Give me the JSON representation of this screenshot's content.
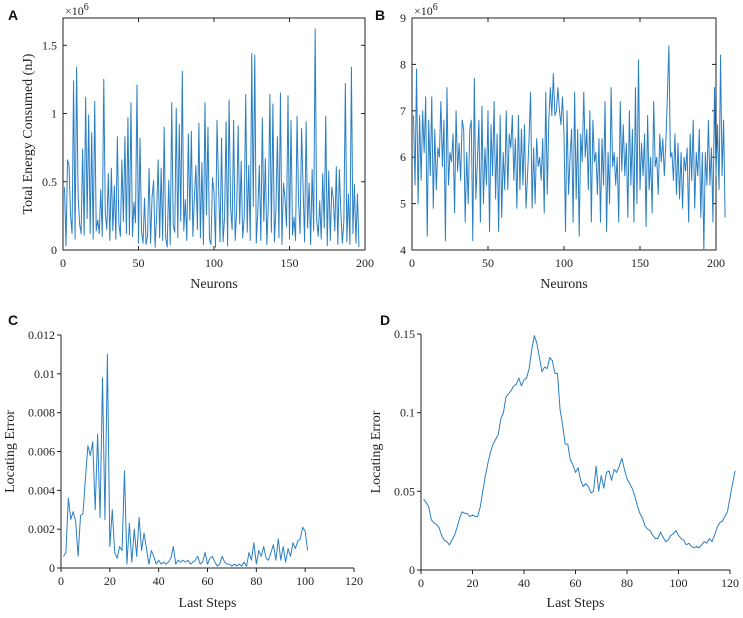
{
  "figure": {
    "accent_color": "#2a7fc4",
    "axis_color": "#222222"
  },
  "chart_data": [
    {
      "panel": "A",
      "type": "line",
      "title": "",
      "xlabel": "Neurons",
      "ylabel": "Total Energy Consumed (nJ)",
      "exponent_label": "×10",
      "exponent_power": "6",
      "xlim": [
        0,
        200
      ],
      "ylim": [
        0,
        1.7
      ],
      "xticks": [
        0,
        50,
        100,
        150,
        200
      ],
      "yticks": [
        0,
        0.5,
        1,
        1.5
      ],
      "ytick_labels": [
        "0",
        "0.5",
        "1",
        "1.5"
      ],
      "x_start": 1,
      "x_step": 1,
      "values": [
        0.46,
        0.03,
        0.66,
        0.62,
        0.25,
        0.12,
        1.24,
        0.08,
        1.34,
        0.4,
        0.19,
        0.12,
        0.74,
        0.11,
        1.12,
        0.23,
        0.99,
        0.12,
        0.86,
        0.08,
        1.09,
        0.14,
        0.22,
        0.12,
        0.44,
        0.1,
        1.25,
        0.27,
        0.15,
        0.56,
        0.07,
        0.6,
        0.14,
        0.47,
        0.08,
        0.83,
        0.19,
        0.1,
        0.66,
        0.21,
        0.83,
        0.12,
        0.97,
        0.11,
        1.08,
        0.1,
        0.35,
        0.2,
        1.21,
        0.05,
        0.82,
        0.14,
        0.05,
        0.38,
        0.04,
        0.1,
        0.6,
        0.05,
        0.39,
        0.51,
        0.02,
        0.25,
        0.66,
        0.09,
        0.6,
        0.07,
        0.9,
        0.09,
        0.02,
        0.51,
        0.04,
        1.08,
        0.18,
        0.13,
        1.04,
        0.09,
        0.92,
        0.21,
        1.31,
        0.14,
        0.37,
        0.07,
        0.85,
        0.22,
        0.87,
        0.1,
        0.38,
        0.62,
        0.15,
        0.93,
        0.09,
        0.64,
        0.04,
        1.08,
        0.26,
        0.9,
        0.08,
        0.04,
        0.53,
        0.42,
        0.02,
        0.95,
        0.48,
        0.06,
        0.82,
        0.06,
        0.24,
        0.94,
        0.03,
        1.1,
        0.31,
        0.15,
        0.95,
        0.07,
        0.28,
        0.91,
        0.19,
        0.65,
        0.09,
        0.24,
        1.14,
        0.13,
        0.62,
        0.07,
        1.44,
        0.32,
        1.43,
        0.05,
        0.28,
        0.62,
        0.07,
        0.97,
        0.21,
        0.67,
        0.04,
        0.34,
        1.14,
        0.13,
        1.07,
        0.06,
        0.3,
        0.83,
        0.09,
        1.15,
        0.04,
        0.49,
        0.38,
        0.17,
        1.13,
        0.08,
        0.95,
        0.11,
        0.24,
        0.07,
        0.98,
        0.36,
        0.12,
        0.89,
        0.45,
        0.06,
        0.94,
        0.16,
        0.49,
        0.04,
        0.59,
        0.14,
        1.62,
        0.22,
        0.1,
        0.36,
        0.08,
        0.56,
        0.16,
        0.98,
        0.03,
        0.58,
        0.07,
        0.46,
        0.38,
        0.14,
        0.61,
        0.04,
        0.59,
        0.28,
        0.05,
        0.21,
        1.22,
        0.06,
        0.41,
        0.04,
        1.34,
        0.12,
        0.48,
        0.05,
        0.41,
        0.02
      ]
    },
    {
      "panel": "B",
      "type": "line",
      "title": "",
      "xlabel": "Neurons",
      "ylabel": "",
      "exponent_label": "×10",
      "exponent_power": "6",
      "xlim": [
        0,
        200
      ],
      "ylim": [
        4,
        9
      ],
      "xticks": [
        0,
        50,
        100,
        150,
        200
      ],
      "yticks": [
        4,
        5,
        6,
        7,
        8,
        9
      ],
      "ytick_labels": [
        "4",
        "5",
        "6",
        "7",
        "8",
        "9"
      ],
      "x_start": 1,
      "x_step": 1,
      "values": [
        6.9,
        5.4,
        7.9,
        5.0,
        6.9,
        5.5,
        7.0,
        6.1,
        7.3,
        4.3,
        6.8,
        5.6,
        7.3,
        4.9,
        6.6,
        5.3,
        6.2,
        6.0,
        7.2,
        5.8,
        6.8,
        4.2,
        7.5,
        5.4,
        6.1,
        5.9,
        6.5,
        4.8,
        7.0,
        5.7,
        6.3,
        5.5,
        6.8,
        6.6,
        4.6,
        6.1,
        5.0,
        6.6,
        6.8,
        4.2,
        7.7,
        5.1,
        5.9,
        6.8,
        4.6,
        7.1,
        5.0,
        6.2,
        5.4,
        7.0,
        4.4,
        6.7,
        5.6,
        7.2,
        5.1,
        6.5,
        4.4,
        6.9,
        4.7,
        6.1,
        5.3,
        7.0,
        5.3,
        6.5,
        6.2,
        6.9,
        5.5,
        6.4,
        4.9,
        6.9,
        5.3,
        6.6,
        5.4,
        6.7,
        4.9,
        5.6,
        6.4,
        7.4,
        4.9,
        6.2,
        5.0,
        6.4,
        5.8,
        6.0,
        5.5,
        6.4,
        4.8,
        7.4,
        5.2,
        6.8,
        7.5,
        6.9,
        7.8,
        6.9,
        7.0,
        7.5,
        7.0,
        6.7,
        7.3,
        6.5,
        4.4,
        7.0,
        5.2,
        6.0,
        6.6,
        4.6,
        7.4,
        5.1,
        6.6,
        4.3,
        6.5,
        5.9,
        7.4,
        6.0,
        6.6,
        5.3,
        7.0,
        4.6,
        6.8,
        5.9,
        6.1,
        5.2,
        6.4,
        4.6,
        6.4,
        5.4,
        7.2,
        4.4,
        6.1,
        5.0,
        7.5,
        5.8,
        6.1,
        5.4,
        6.0,
        4.6,
        7.2,
        5.7,
        6.7,
        5.6,
        6.3,
        4.7,
        7.0,
        5.4,
        6.6,
        4.6,
        7.5,
        5.0,
        8.1,
        5.3,
        6.3,
        5.6,
        6.5,
        4.5,
        6.9,
        5.3,
        6.0,
        4.8,
        7.2,
        5.8,
        6.0,
        5.2,
        6.5,
        5.9,
        6.4,
        5.6,
        6.3,
        7.3,
        8.4,
        6.0,
        6.1,
        5.5,
        6.5,
        5.2,
        6.3,
        5.1,
        6.1,
        4.9,
        6.0,
        5.7,
        6.2,
        4.6,
        6.5,
        5.5,
        6.8,
        4.9,
        6.1,
        5.6,
        6.6,
        4.7,
        6.1,
        4.0,
        6.1,
        5.4,
        6.8,
        5.4,
        6.2,
        4.6,
        7.5,
        5.6,
        6.7,
        5.3,
        8.2,
        5.6,
        6.8,
        4.7
      ]
    },
    {
      "panel": "C",
      "type": "line",
      "title": "",
      "xlabel": "Last Steps",
      "ylabel": "Locating Error",
      "xlim": [
        0,
        120
      ],
      "ylim": [
        0,
        0.012
      ],
      "xticks": [
        0,
        20,
        40,
        60,
        80,
        100,
        120
      ],
      "yticks": [
        0,
        0.002,
        0.004,
        0.006,
        0.008,
        0.01,
        0.012
      ],
      "ytick_labels": [
        "0",
        "0.002",
        "0.004",
        "0.006",
        "0.008",
        "0.01",
        "0.012"
      ],
      "x_start": 1,
      "x_step": 1,
      "values": [
        0.0006,
        0.0008,
        0.0036,
        0.0025,
        0.0029,
        0.0024,
        0.0006,
        0.0027,
        0.0028,
        0.0046,
        0.0063,
        0.0058,
        0.0065,
        0.003,
        0.0069,
        0.0026,
        0.0098,
        0.0025,
        0.011,
        0.0011,
        0.003,
        0.0008,
        0.0005,
        0.0011,
        0.0009,
        0.005,
        0.0002,
        0.0023,
        0.0003,
        0.002,
        0.0006,
        0.0026,
        0.0009,
        0.0018,
        0.001,
        0.0002,
        0.0009,
        0.0006,
        0.0002,
        0.0004,
        0.0002,
        0.0003,
        0.0002,
        0.0003,
        0.0005,
        0.0011,
        0.0002,
        0.0004,
        0.0003,
        0.0004,
        0.0003,
        0.0004,
        0.0002,
        0.0003,
        0.0004,
        0.0006,
        0.0002,
        0.0003,
        0.0008,
        0.0002,
        0.0005,
        0.0006,
        0.0003,
        0.0001,
        0.0002,
        0.0006,
        0.0003,
        0.0002,
        0.0002,
        0.0001,
        0.0002,
        0.0001,
        0.0002,
        0.0001,
        0.0003,
        0.0001,
        0.0008,
        0.0004,
        0.0013,
        0.0002,
        0.0009,
        0.0006,
        0.0011,
        0.0005,
        0.0004,
        0.0008,
        0.0012,
        0.0004,
        0.0015,
        0.0004,
        0.0011,
        0.0003,
        0.001,
        0.0006,
        0.0013,
        0.001,
        0.0014,
        0.0015,
        0.0021,
        0.0019,
        0.0009
      ]
    },
    {
      "panel": "D",
      "type": "line",
      "title": "",
      "xlabel": "Last Steps",
      "ylabel": "Locating Error",
      "xlim": [
        0,
        120
      ],
      "ylim": [
        0,
        0.15
      ],
      "xticks": [
        0,
        20,
        40,
        60,
        80,
        100,
        120
      ],
      "yticks": [
        0,
        0.05,
        0.1,
        0.15
      ],
      "ytick_labels": [
        "0",
        "0.05",
        "0.1",
        "0.15"
      ],
      "x_start": 1,
      "x_step": 1,
      "values": [
        0.045,
        0.043,
        0.04,
        0.032,
        0.03,
        0.029,
        0.027,
        0.022,
        0.019,
        0.018,
        0.016,
        0.019,
        0.022,
        0.027,
        0.033,
        0.037,
        0.036,
        0.036,
        0.034,
        0.035,
        0.034,
        0.034,
        0.04,
        0.05,
        0.06,
        0.068,
        0.075,
        0.08,
        0.083,
        0.086,
        0.096,
        0.1,
        0.11,
        0.112,
        0.114,
        0.117,
        0.118,
        0.122,
        0.117,
        0.121,
        0.122,
        0.128,
        0.14,
        0.149,
        0.144,
        0.135,
        0.126,
        0.129,
        0.128,
        0.135,
        0.133,
        0.125,
        0.125,
        0.102,
        0.092,
        0.08,
        0.08,
        0.07,
        0.067,
        0.062,
        0.065,
        0.057,
        0.053,
        0.055,
        0.053,
        0.049,
        0.05,
        0.066,
        0.05,
        0.06,
        0.052,
        0.062,
        0.063,
        0.057,
        0.064,
        0.062,
        0.066,
        0.071,
        0.064,
        0.058,
        0.055,
        0.052,
        0.047,
        0.041,
        0.036,
        0.033,
        0.028,
        0.026,
        0.025,
        0.022,
        0.02,
        0.02,
        0.024,
        0.021,
        0.018,
        0.019,
        0.022,
        0.023,
        0.025,
        0.022,
        0.02,
        0.019,
        0.016,
        0.017,
        0.015,
        0.014,
        0.015,
        0.014,
        0.016,
        0.018,
        0.017,
        0.02,
        0.018,
        0.022,
        0.027,
        0.03,
        0.031,
        0.034,
        0.037,
        0.046,
        0.055,
        0.063
      ]
    }
  ]
}
